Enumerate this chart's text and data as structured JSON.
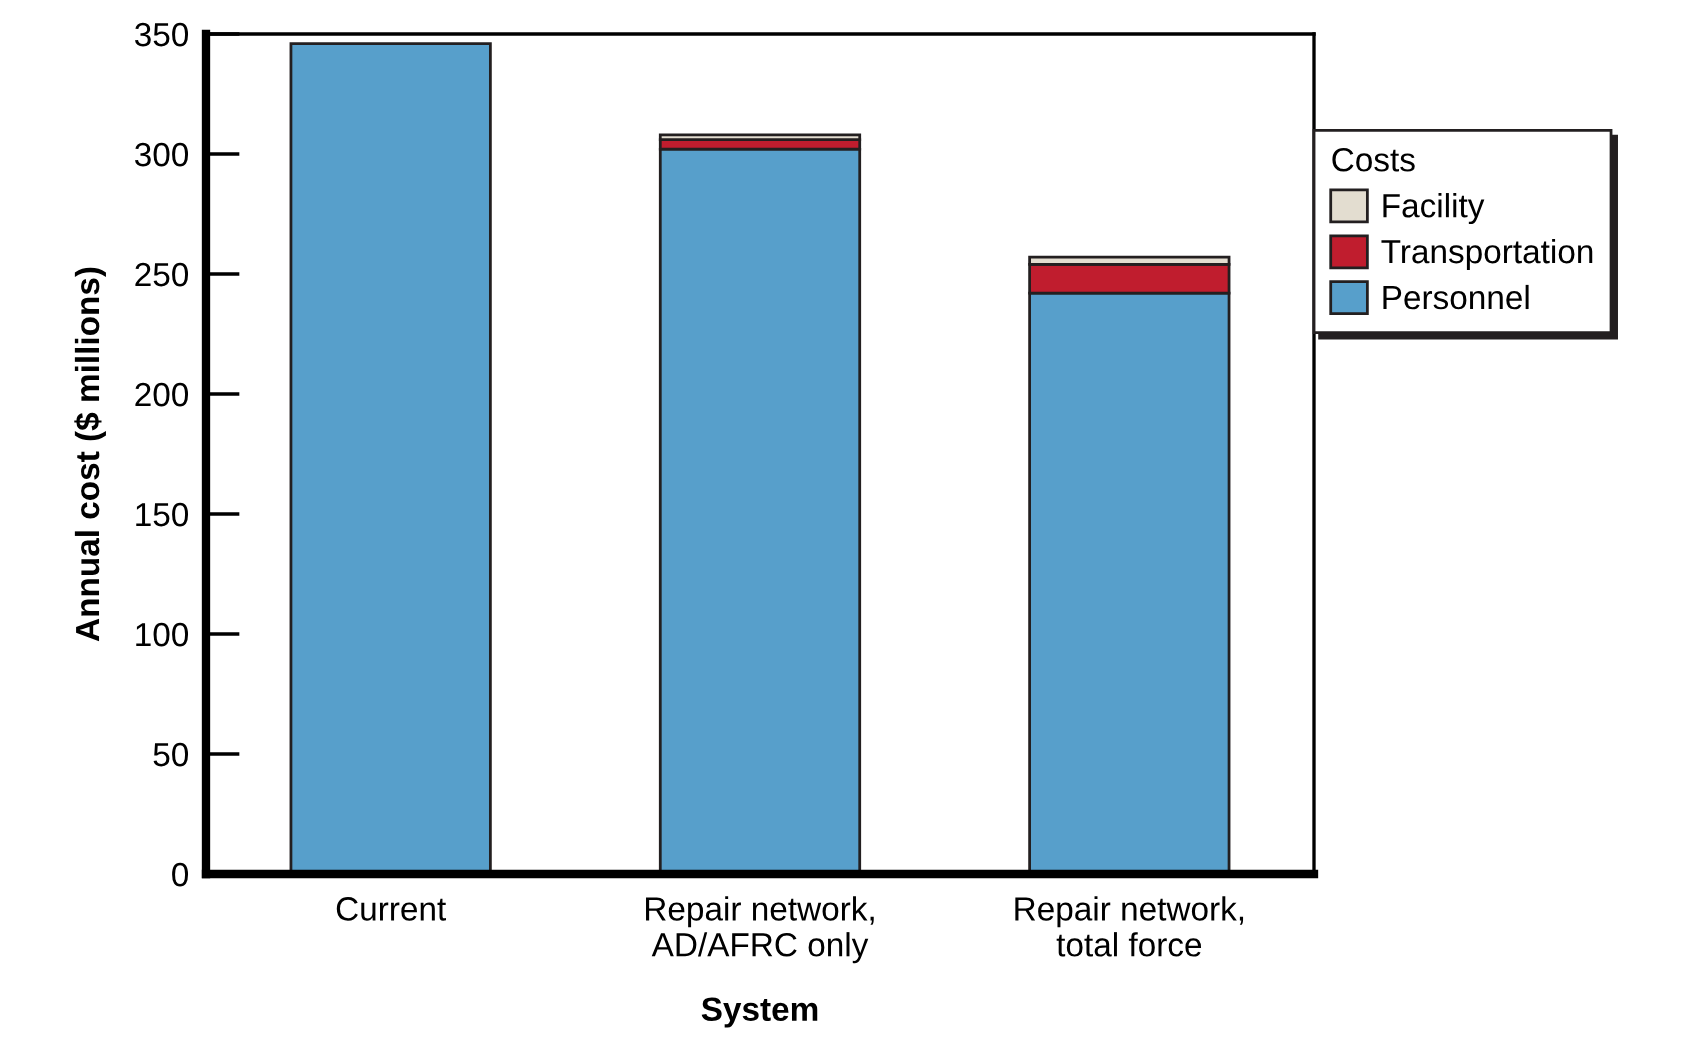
{
  "chart_data": {
    "type": "bar",
    "stacked": true,
    "xlabel": "System",
    "ylabel": "Annual cost ($ millions)",
    "legend_title": "Costs",
    "categories": [
      "Current",
      "Repair network,\nAD/AFRC only",
      "Repair network,\ntotal force"
    ],
    "series": [
      {
        "name": "Personnel",
        "color": "#579fcb",
        "values": [
          346,
          302,
          242
        ]
      },
      {
        "name": "Transportation",
        "color": "#c01d2e",
        "values": [
          null,
          4,
          12
        ]
      },
      {
        "name": "Facility",
        "color": "#e3ddd0",
        "values": [
          null,
          2,
          3
        ]
      }
    ],
    "ylim": [
      0,
      350
    ],
    "yticks": [
      0,
      50,
      100,
      150,
      200,
      250,
      300,
      350
    ],
    "grid": false,
    "legend": "top right"
  }
}
